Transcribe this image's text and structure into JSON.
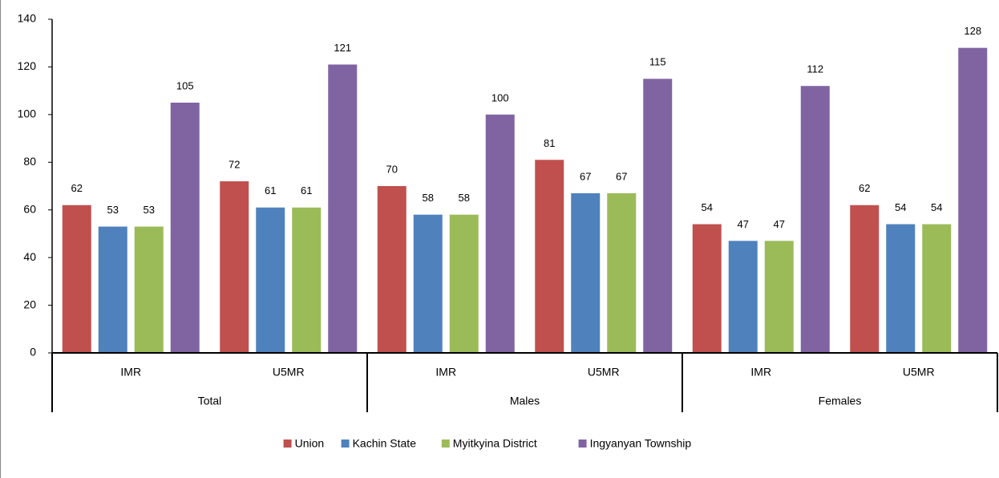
{
  "chart_data": {
    "type": "bar",
    "categories": [
      "IMR",
      "U5MR",
      "IMR",
      "U5MR",
      "IMR",
      "U5MR"
    ],
    "groups": [
      "Total",
      "Males",
      "Females"
    ],
    "series": [
      {
        "name": "Union",
        "color": "#c0504d",
        "values": [
          62,
          72,
          70,
          81,
          54,
          62
        ]
      },
      {
        "name": "Kachin State",
        "color": "#4f81bd",
        "values": [
          53,
          61,
          58,
          67,
          47,
          54
        ]
      },
      {
        "name": "Myitkyina District",
        "color": "#9bbb59",
        "values": [
          53,
          61,
          58,
          67,
          47,
          54
        ]
      },
      {
        "name": "Ingyanyan Township",
        "color": "#8064a2",
        "values": [
          105,
          121,
          100,
          115,
          112,
          128
        ]
      }
    ],
    "ylim": [
      0,
      140
    ],
    "yticks": [
      0,
      20,
      40,
      60,
      80,
      100,
      120,
      140
    ],
    "grid": false,
    "legend": "bottom"
  }
}
